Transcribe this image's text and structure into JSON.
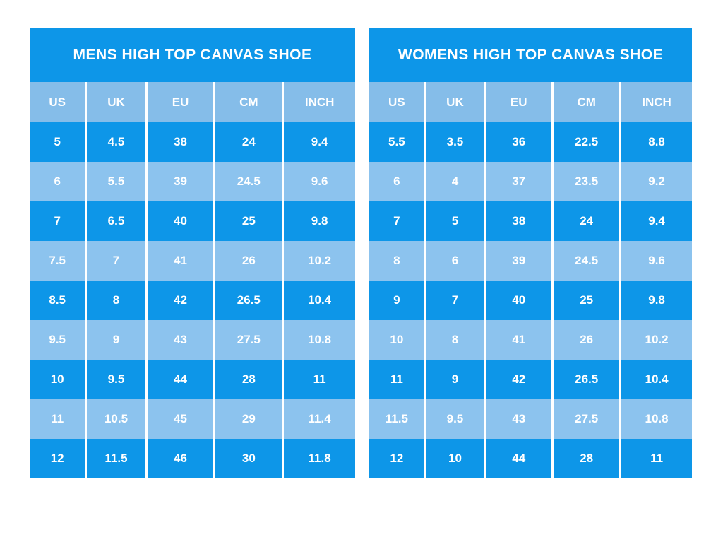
{
  "page": {
    "background": "#ffffff"
  },
  "colors": {
    "dark_blue": "#0d96e8",
    "light_blue": "#8cc3ee",
    "header_blue": "#85bde9",
    "text": "#ffffff",
    "divider": "#ffffff"
  },
  "chart_data": [
    {
      "type": "table",
      "id": "mens",
      "title": "MENS HIGH TOP CANVAS SHOE",
      "columns": [
        "US",
        "UK",
        "EU",
        "CM",
        "INCH"
      ],
      "rows": [
        [
          "5",
          "4.5",
          "38",
          "24",
          "9.4"
        ],
        [
          "6",
          "5.5",
          "39",
          "24.5",
          "9.6"
        ],
        [
          "7",
          "6.5",
          "40",
          "25",
          "9.8"
        ],
        [
          "7.5",
          "7",
          "41",
          "26",
          "10.2"
        ],
        [
          "8.5",
          "8",
          "42",
          "26.5",
          "10.4"
        ],
        [
          "9.5",
          "9",
          "43",
          "27.5",
          "10.8"
        ],
        [
          "10",
          "9.5",
          "44",
          "28",
          "11"
        ],
        [
          "11",
          "10.5",
          "45",
          "29",
          "11.4"
        ],
        [
          "12",
          "11.5",
          "46",
          "30",
          "11.8"
        ]
      ]
    },
    {
      "type": "table",
      "id": "womens",
      "title": "WOMENS HIGH TOP CANVAS SHOE",
      "columns": [
        "US",
        "UK",
        "EU",
        "CM",
        "INCH"
      ],
      "rows": [
        [
          "5.5",
          "3.5",
          "36",
          "22.5",
          "8.8"
        ],
        [
          "6",
          "4",
          "37",
          "23.5",
          "9.2"
        ],
        [
          "7",
          "5",
          "38",
          "24",
          "9.4"
        ],
        [
          "8",
          "6",
          "39",
          "24.5",
          "9.6"
        ],
        [
          "9",
          "7",
          "40",
          "25",
          "9.8"
        ],
        [
          "10",
          "8",
          "41",
          "26",
          "10.2"
        ],
        [
          "11",
          "9",
          "42",
          "26.5",
          "10.4"
        ],
        [
          "11.5",
          "9.5",
          "43",
          "27.5",
          "10.8"
        ],
        [
          "12",
          "10",
          "44",
          "28",
          "11"
        ]
      ]
    }
  ]
}
